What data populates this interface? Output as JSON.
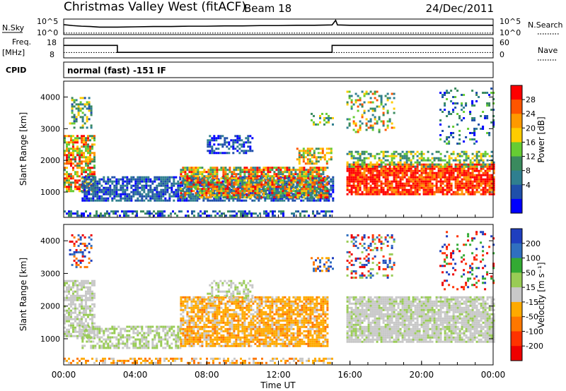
{
  "header": {
    "title": "Christmas Valley West (fitACF)",
    "beam": "Beam 18",
    "date": "24/Dec/2011"
  },
  "noise_panel": {
    "left_label": "N.Sky",
    "right_label": "N.Search",
    "tick_top": "10^5",
    "tick_bottom": "10^0",
    "series": [
      {
        "name": "N.Sky",
        "style": "solid",
        "x": [
          0,
          0.5,
          1,
          1.5,
          2,
          3,
          4,
          5,
          6,
          7,
          8,
          9,
          10,
          11,
          12,
          13,
          14,
          15,
          15.2,
          15.3,
          16,
          17,
          18,
          19,
          20,
          21,
          22,
          23,
          24
        ],
        "y": [
          3.2,
          2.9,
          2.7,
          2.6,
          2.4,
          2.4,
          2.5,
          2.6,
          2.6,
          2.7,
          2.7,
          2.8,
          2.8,
          2.9,
          2.9,
          3.0,
          3.0,
          3.1,
          4.6,
          3.1,
          3.0,
          3.0,
          3.0,
          3.0,
          3.0,
          3.0,
          3.0,
          3.0,
          3.0
        ]
      },
      {
        "name": "N.Search",
        "style": "dotted",
        "x": [
          0,
          24
        ],
        "y": [
          0.5,
          0.5
        ]
      }
    ]
  },
  "freq_panel": {
    "left_label_1": "Freq.",
    "left_label_2": "[MHz]",
    "left_ticks": [
      "18",
      "8"
    ],
    "right_label": "Nave",
    "right_ticks": [
      "60",
      "0"
    ],
    "series": [
      {
        "name": "Freq",
        "style": "solid",
        "x": [
          0,
          3,
          3,
          15,
          15,
          24
        ],
        "y": [
          14.3,
          14.3,
          10.8,
          10.8,
          14.3,
          14.3
        ]
      },
      {
        "name": "Nave",
        "style": "dotted",
        "x": [
          0,
          24
        ],
        "y": [
          10.7,
          10.7
        ]
      }
    ]
  },
  "cpid_panel": {
    "label": "CPID",
    "text": "normal (fast) -151 IF"
  },
  "chart_data": [
    {
      "type": "heatmap",
      "name": "power",
      "ylabel": "Slant Range [km]",
      "ylim": [
        200,
        4500
      ],
      "xlim": [
        0,
        24
      ],
      "yticks": [
        1000,
        2000,
        3000,
        4000
      ],
      "colorbar": {
        "label": "Power [dB]",
        "ticks": [
          "28",
          "24",
          "20",
          "16",
          "12",
          "8",
          "4"
        ],
        "colors": [
          "#ff0000",
          "#ff5500",
          "#ff9900",
          "#ffcc00",
          "#66cc33",
          "#3a8a5e",
          "#2f7f8f",
          "#1f4faa",
          "#0000ff"
        ]
      },
      "patches": [
        {
          "x0": 0,
          "x1": 1.7,
          "r0": 1000,
          "r1": 2800,
          "density": 0.7,
          "palette": [
            0,
            1,
            2,
            3,
            4,
            5
          ]
        },
        {
          "x0": 0.3,
          "x1": 1.5,
          "r0": 3000,
          "r1": 4000,
          "density": 0.4,
          "palette": [
            3,
            4,
            5,
            6,
            7
          ]
        },
        {
          "x0": 1.0,
          "x1": 15,
          "r0": 700,
          "r1": 1500,
          "density": 0.75,
          "palette": [
            6,
            7,
            8,
            7,
            6
          ]
        },
        {
          "x0": 6.5,
          "x1": 14.8,
          "r0": 800,
          "r1": 1800,
          "density": 0.8,
          "palette": [
            0,
            1,
            2,
            3,
            4,
            5,
            6
          ]
        },
        {
          "x0": 8.0,
          "x1": 10.5,
          "r0": 2200,
          "r1": 2800,
          "density": 0.45,
          "palette": [
            6,
            7,
            8
          ]
        },
        {
          "x0": 13.0,
          "x1": 15.0,
          "r0": 1900,
          "r1": 2400,
          "density": 0.6,
          "palette": [
            1,
            2,
            3,
            4,
            5
          ]
        },
        {
          "x0": 13.8,
          "x1": 15.0,
          "r0": 3100,
          "r1": 3500,
          "density": 0.4,
          "palette": [
            3,
            4,
            5,
            6
          ]
        },
        {
          "x0": 0,
          "x1": 15,
          "r0": 260,
          "r1": 420,
          "density": 0.5,
          "palette": [
            5,
            6,
            7,
            8
          ]
        },
        {
          "x0": 15.8,
          "x1": 24,
          "r0": 900,
          "r1": 1900,
          "density": 0.85,
          "palette": [
            0,
            0,
            0,
            1,
            1,
            2
          ]
        },
        {
          "x0": 15.8,
          "x1": 24,
          "r0": 1800,
          "r1": 2300,
          "density": 0.5,
          "palette": [
            3,
            4,
            5,
            6
          ]
        },
        {
          "x0": 15.8,
          "x1": 18.5,
          "r0": 2900,
          "r1": 4200,
          "density": 0.3,
          "palette": [
            1,
            3,
            4,
            5,
            6
          ]
        },
        {
          "x0": 21.0,
          "x1": 24,
          "r0": 2500,
          "r1": 4300,
          "density": 0.18,
          "palette": [
            4,
            5,
            6,
            7,
            8
          ]
        }
      ]
    },
    {
      "type": "heatmap",
      "name": "velocity",
      "ylabel": "Slant Range [km]",
      "xlabel": "Time UT",
      "ylim": [
        200,
        4500
      ],
      "xlim": [
        0,
        24
      ],
      "yticks": [
        1000,
        2000,
        3000,
        4000
      ],
      "xticks": [
        "00:00",
        "04:00",
        "08:00",
        "12:00",
        "16:00",
        "20:00",
        "00:00"
      ],
      "colorbar": {
        "label": "Velocity [m s⁻¹]",
        "ticks": [
          "200",
          "100",
          "50",
          "15",
          "-15",
          "-50",
          "-100",
          "-200"
        ],
        "colors": [
          "#1f3fbf",
          "#2f6fbf",
          "#33aa33",
          "#99cc55",
          "#c8c8c8",
          "#ffaa00",
          "#ff7700",
          "#ff3300",
          "#ee0000"
        ]
      },
      "patches": [
        {
          "x0": 0,
          "x1": 1.7,
          "r0": 1000,
          "r1": 2800,
          "density": 0.7,
          "palette": [
            4,
            4,
            4,
            3
          ]
        },
        {
          "x0": 0.3,
          "x1": 1.5,
          "r0": 3200,
          "r1": 4200,
          "density": 0.35,
          "palette": [
            0,
            1,
            6,
            8
          ]
        },
        {
          "x0": 1.0,
          "x1": 6.5,
          "r0": 700,
          "r1": 1400,
          "density": 0.6,
          "palette": [
            3,
            3,
            4,
            4
          ]
        },
        {
          "x0": 6.5,
          "x1": 14.8,
          "r0": 800,
          "r1": 2300,
          "density": 0.8,
          "palette": [
            5,
            5,
            5,
            6,
            4
          ]
        },
        {
          "x0": 8.0,
          "x1": 10.5,
          "r0": 2200,
          "r1": 2800,
          "density": 0.4,
          "palette": [
            4,
            3,
            4
          ]
        },
        {
          "x0": 13.8,
          "x1": 15.0,
          "r0": 3100,
          "r1": 3500,
          "density": 0.4,
          "palette": [
            0,
            1,
            6,
            5
          ]
        },
        {
          "x0": 0,
          "x1": 15,
          "r0": 260,
          "r1": 420,
          "density": 0.45,
          "palette": [
            5,
            6,
            4
          ]
        },
        {
          "x0": 15.8,
          "x1": 24,
          "r0": 900,
          "r1": 2300,
          "density": 0.85,
          "palette": [
            4,
            4,
            4,
            4,
            3
          ]
        },
        {
          "x0": 15.8,
          "x1": 18.5,
          "r0": 2900,
          "r1": 4200,
          "density": 0.3,
          "palette": [
            0,
            1,
            7,
            8,
            3
          ]
        },
        {
          "x0": 21.0,
          "x1": 24,
          "r0": 2500,
          "r1": 4300,
          "density": 0.18,
          "palette": [
            0,
            2,
            7,
            8
          ]
        }
      ]
    }
  ]
}
